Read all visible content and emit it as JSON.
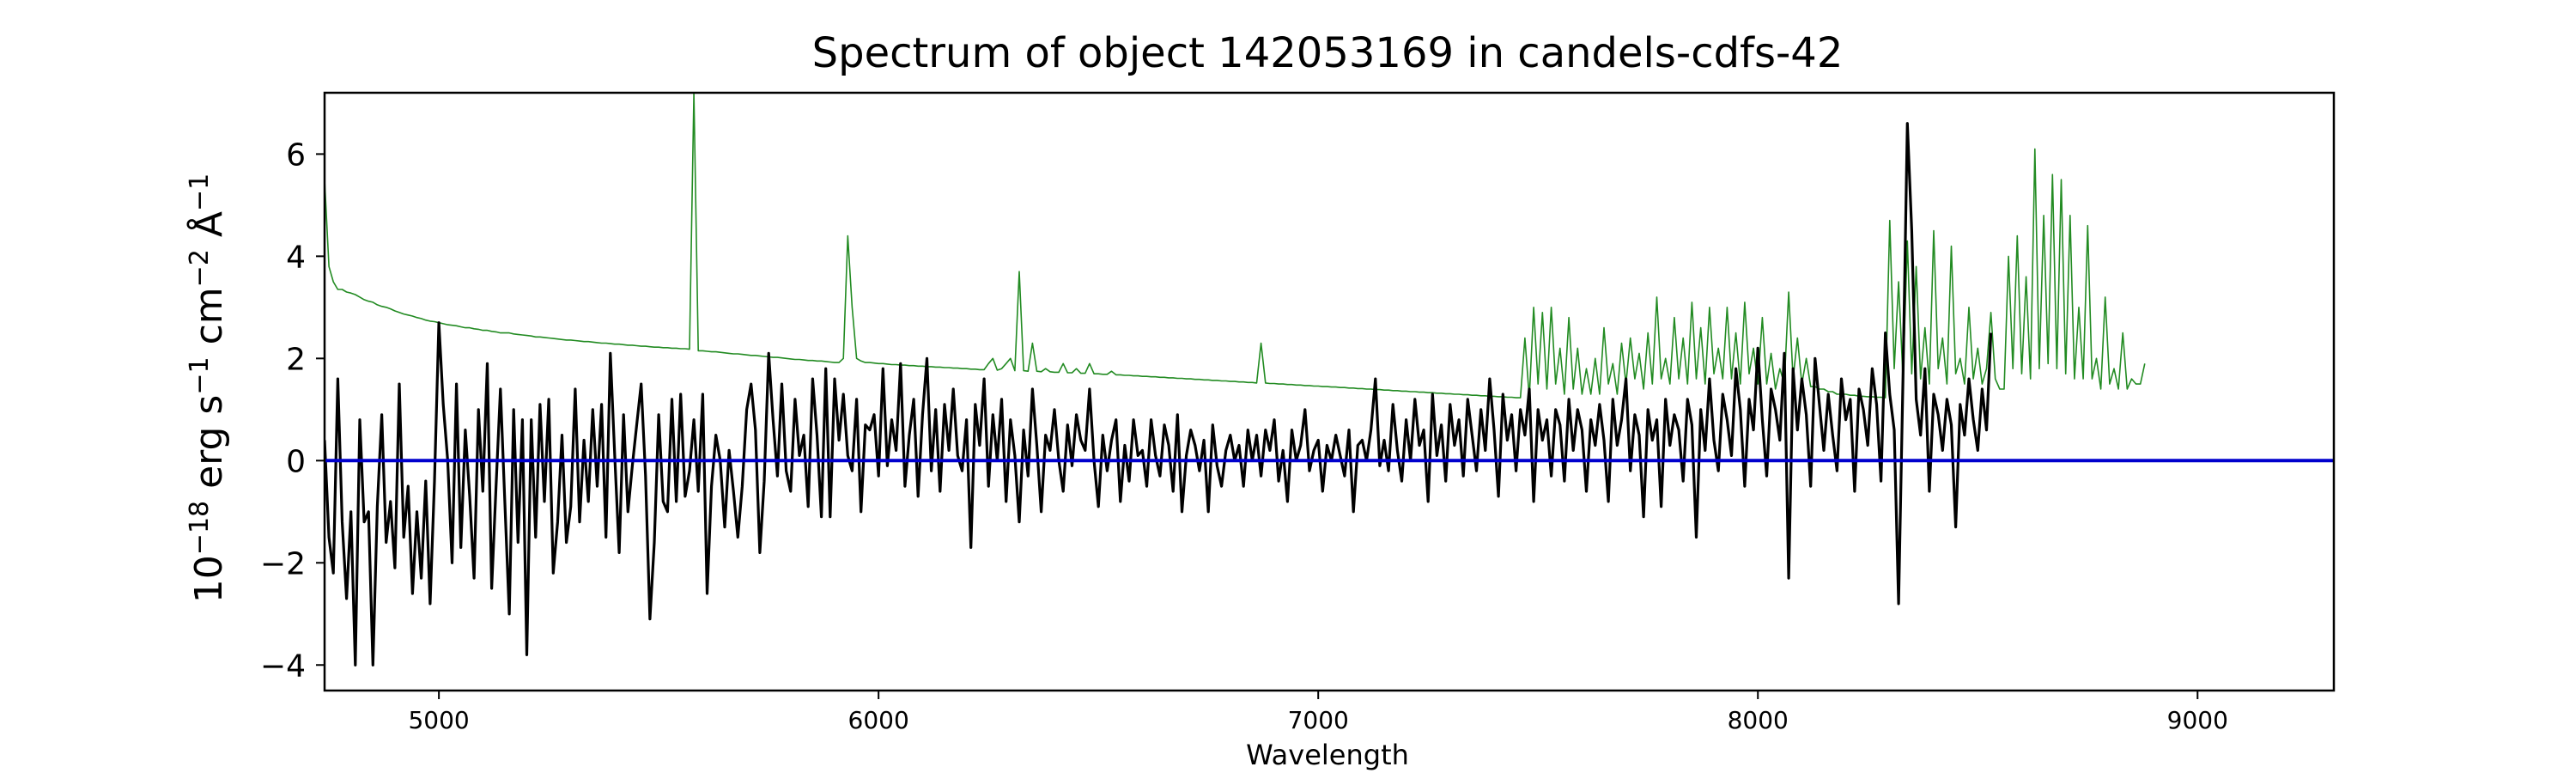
{
  "chart_data": {
    "type": "line",
    "title": "Spectrum of object 142053169 in candels-cdfs-42",
    "xlabel": "Wavelength",
    "ylabel_base": "10",
    "ylabel_exp": "−18",
    "ylabel_rest": " erg s",
    "ylabel_exp2": "−1",
    "ylabel_rest2": " cm",
    "ylabel_exp3": "−2",
    "ylabel_rest3": " Å",
    "ylabel_exp4": "−1",
    "xlim": [
      4740,
      9310
    ],
    "ylim": [
      -4.5,
      7.2
    ],
    "x_ticks": [
      5000,
      6000,
      7000,
      8000,
      9000
    ],
    "x_tick_labels": [
      "5000",
      "6000",
      "7000",
      "8000",
      "9000"
    ],
    "y_ticks": [
      -4,
      -2,
      0,
      2,
      4,
      6
    ],
    "y_tick_labels": [
      "−4",
      "−2",
      "0",
      "2",
      "4",
      "6"
    ],
    "grid": false,
    "colors": {
      "spectrum": "#000000",
      "noise": "#228B22",
      "continuum": "#0000CD"
    },
    "series": [
      {
        "role": "spectrum",
        "wl_start": 4740,
        "wl_step": 10,
        "values": [
          0.4,
          -1.5,
          -2.2,
          1.6,
          -1.2,
          -2.7,
          -1.0,
          -4.0,
          0.8,
          -1.2,
          -1.0,
          -4.0,
          -0.9,
          0.9,
          -1.6,
          -0.8,
          -2.1,
          1.5,
          -1.5,
          -0.5,
          -2.6,
          -1.0,
          -2.3,
          -0.4,
          -2.8,
          -0.4,
          2.7,
          1.1,
          0.0,
          -2.0,
          1.5,
          -1.7,
          0.6,
          -0.7,
          -2.3,
          1.0,
          -0.6,
          1.9,
          -2.5,
          -0.5,
          1.4,
          -0.8,
          -3.0,
          1.0,
          -1.6,
          0.8,
          -3.8,
          0.8,
          -1.5,
          1.1,
          -0.8,
          1.2,
          -2.2,
          -1.2,
          0.5,
          -1.6,
          -0.9,
          1.4,
          -1.2,
          0.4,
          -0.8,
          1.0,
          -0.5,
          1.1,
          -1.5,
          2.1,
          0.1,
          -1.8,
          0.9,
          -1.0,
          -0.1,
          0.7,
          1.5,
          -0.3,
          -3.1,
          -1.6,
          0.9,
          -0.8,
          -1.0,
          1.2,
          -0.8,
          1.3,
          -0.7,
          -0.2,
          0.8,
          -0.6,
          1.3,
          -2.6,
          -0.5,
          0.5,
          0.0,
          -1.3,
          0.2,
          -0.6,
          -1.5,
          -0.5,
          1.0,
          1.5,
          0.6,
          -1.8,
          -0.4,
          2.1,
          0.8,
          -0.3,
          1.5,
          -0.2,
          -0.6,
          1.2,
          0.1,
          0.5,
          -0.9,
          1.6,
          0.5,
          -1.1,
          1.8,
          -1.1,
          1.6,
          0.4,
          1.3,
          0.1,
          -0.2,
          1.2,
          -1.0,
          0.7,
          0.6,
          0.9,
          -0.3,
          1.8,
          -0.1,
          0.8,
          0.2,
          1.9,
          -0.5,
          0.5,
          1.2,
          -0.7,
          0.9,
          2.0,
          -0.2,
          1.0,
          -0.6,
          1.1,
          0.2,
          1.4,
          0.1,
          -0.2,
          0.8,
          -1.7,
          1.1,
          0.3,
          1.6,
          -0.5,
          0.9,
          0.0,
          1.2,
          -0.8,
          0.8,
          0.1,
          -1.2,
          0.6,
          -0.3,
          1.4,
          0.3,
          -1.0,
          0.5,
          0.2,
          1.0,
          0.0,
          -0.6,
          0.7,
          -0.1,
          0.9,
          0.4,
          0.2,
          1.4,
          0.0,
          -0.9,
          0.5,
          -0.2,
          0.4,
          0.8,
          -0.8,
          0.3,
          -0.4,
          0.8,
          0.1,
          0.2,
          -0.5,
          0.8,
          0.1,
          -0.3,
          0.7,
          0.3,
          -0.6,
          0.9,
          -1.0,
          0.1,
          0.6,
          0.3,
          -0.2,
          0.4,
          -1.0,
          0.7,
          -0.1,
          -0.5,
          0.2,
          0.5,
          0.0,
          0.3,
          -0.5,
          0.6,
          0.0,
          0.5,
          -0.3,
          0.6,
          0.2,
          0.8,
          -0.4,
          0.2,
          -0.8,
          0.6,
          0.0,
          0.3,
          1.0,
          -0.2,
          0.2,
          0.4,
          -0.6,
          0.3,
          0.0,
          0.5,
          0.1,
          -0.3,
          0.6,
          -1.0,
          0.3,
          0.4,
          0.0,
          0.6,
          1.6,
          -0.1,
          0.4,
          -0.2,
          1.1,
          0.2,
          -0.4,
          0.8,
          0.0,
          1.2,
          0.3,
          0.6,
          -0.8,
          1.3,
          0.1,
          0.7,
          -0.4,
          1.1,
          0.3,
          0.8,
          -0.3,
          1.2,
          0.5,
          -0.2,
          1.0,
          0.2,
          1.6,
          0.6,
          -0.7,
          1.3,
          0.4,
          0.9,
          -0.2,
          1.0,
          0.5,
          1.4,
          -0.8,
          1.0,
          0.4,
          0.8,
          -0.3,
          1.0,
          0.7,
          -0.4,
          1.2,
          0.2,
          1.0,
          0.6,
          -0.6,
          0.8,
          0.3,
          1.1,
          0.4,
          -0.8,
          1.2,
          0.3,
          0.8,
          1.6,
          -0.2,
          0.9,
          0.5,
          -1.1,
          1.0,
          0.4,
          0.8,
          -0.9,
          1.2,
          0.3,
          0.9,
          0.6,
          -0.4,
          1.2,
          0.7,
          -1.5,
          1.0,
          0.2,
          1.6,
          0.4,
          -0.2,
          1.3,
          0.8,
          0.1,
          1.8,
          1.0,
          -0.5,
          1.2,
          0.6,
          2.2,
          0.8,
          -0.3,
          1.4,
          1.0,
          0.4,
          2.1,
          -2.3,
          1.8,
          0.6,
          1.6,
          0.9,
          -0.5,
          2.0,
          1.1,
          0.2,
          1.3,
          0.5,
          -0.2,
          1.6,
          0.8,
          1.2,
          -0.6,
          1.4,
          1.0,
          0.3,
          1.8,
          1.1,
          -0.4,
          2.5,
          1.3,
          0.6,
          -2.8,
          1.6,
          6.6,
          4.5,
          1.2,
          0.5,
          1.8,
          -0.6,
          1.3,
          0.9,
          0.2,
          1.2,
          0.7,
          -1.3,
          1.1,
          0.5,
          1.6,
          0.8,
          0.2,
          1.4,
          0.6,
          2.5
        ]
      },
      {
        "role": "noise",
        "wl_start": 4740,
        "wl_step": 10,
        "values": [
          5.5,
          3.8,
          3.5,
          3.35,
          3.35,
          3.3,
          3.28,
          3.25,
          3.2,
          3.15,
          3.12,
          3.1,
          3.05,
          3.02,
          3.0,
          2.97,
          2.93,
          2.9,
          2.87,
          2.85,
          2.83,
          2.8,
          2.78,
          2.75,
          2.73,
          2.72,
          2.7,
          2.68,
          2.66,
          2.65,
          2.64,
          2.62,
          2.6,
          2.6,
          2.58,
          2.57,
          2.55,
          2.55,
          2.53,
          2.52,
          2.5,
          2.5,
          2.5,
          2.48,
          2.47,
          2.46,
          2.45,
          2.44,
          2.42,
          2.42,
          2.41,
          2.4,
          2.39,
          2.38,
          2.37,
          2.36,
          2.36,
          2.35,
          2.34,
          2.33,
          2.33,
          2.32,
          2.31,
          2.3,
          2.3,
          2.29,
          2.28,
          2.28,
          2.27,
          2.26,
          2.26,
          2.25,
          2.24,
          2.24,
          2.23,
          2.22,
          2.22,
          2.21,
          2.21,
          2.2,
          2.2,
          2.19,
          2.19,
          2.18,
          7.2,
          2.15,
          2.15,
          2.14,
          2.13,
          2.13,
          2.12,
          2.11,
          2.1,
          2.09,
          2.09,
          2.08,
          2.07,
          2.06,
          2.06,
          2.05,
          2.04,
          2.03,
          2.02,
          2.02,
          2.01,
          2.0,
          1.99,
          1.98,
          1.98,
          1.97,
          1.96,
          1.96,
          1.95,
          1.95,
          1.94,
          1.93,
          1.92,
          1.92,
          2.0,
          4.4,
          3.0,
          2.0,
          1.95,
          1.92,
          1.92,
          1.91,
          1.9,
          1.9,
          1.89,
          1.88,
          1.88,
          1.87,
          1.87,
          1.86,
          1.86,
          1.85,
          1.85,
          1.84,
          1.84,
          1.83,
          1.83,
          1.82,
          1.82,
          1.81,
          1.81,
          1.8,
          1.8,
          1.79,
          1.79,
          1.78,
          1.78,
          1.9,
          2.0,
          1.77,
          1.8,
          1.9,
          2.0,
          1.76,
          3.7,
          1.76,
          1.75,
          2.3,
          1.75,
          1.74,
          1.8,
          1.74,
          1.73,
          1.73,
          1.9,
          1.72,
          1.72,
          1.8,
          1.71,
          1.71,
          1.9,
          1.7,
          1.7,
          1.69,
          1.69,
          1.75,
          1.68,
          1.68,
          1.67,
          1.67,
          1.66,
          1.66,
          1.65,
          1.65,
          1.64,
          1.64,
          1.63,
          1.63,
          1.62,
          1.62,
          1.61,
          1.61,
          1.6,
          1.6,
          1.59,
          1.59,
          1.58,
          1.58,
          1.57,
          1.57,
          1.56,
          1.56,
          1.55,
          1.55,
          1.54,
          1.54,
          1.53,
          1.53,
          1.52,
          2.3,
          1.52,
          1.51,
          1.51,
          1.5,
          1.5,
          1.49,
          1.49,
          1.48,
          1.48,
          1.47,
          1.47,
          1.46,
          1.46,
          1.45,
          1.45,
          1.44,
          1.44,
          1.43,
          1.43,
          1.42,
          1.42,
          1.41,
          1.41,
          1.4,
          1.4,
          1.39,
          1.39,
          1.38,
          1.38,
          1.37,
          1.37,
          1.36,
          1.36,
          1.35,
          1.35,
          1.34,
          1.34,
          1.33,
          1.33,
          1.32,
          1.32,
          1.31,
          1.31,
          1.3,
          1.3,
          1.29,
          1.29,
          1.28,
          1.28,
          1.27,
          1.27,
          1.26,
          1.26,
          1.25,
          1.25,
          1.24,
          1.24,
          1.23,
          1.23,
          2.4,
          1.23,
          3.0,
          1.5,
          2.9,
          1.4,
          3.0,
          1.5,
          2.2,
          1.3,
          2.8,
          1.4,
          2.2,
          1.3,
          1.8,
          1.3,
          2.0,
          1.3,
          2.6,
          1.5,
          1.9,
          1.3,
          2.3,
          1.5,
          2.4,
          1.6,
          2.1,
          1.4,
          2.5,
          1.5,
          3.2,
          1.6,
          2.0,
          1.5,
          2.8,
          1.6,
          2.4,
          1.5,
          3.1,
          1.6,
          2.6,
          1.5,
          3.0,
          1.7,
          2.2,
          1.6,
          3.0,
          1.6,
          2.5,
          1.5,
          3.1,
          1.7,
          2.2,
          1.5,
          2.8,
          1.5,
          2.1,
          1.4,
          1.8,
          1.5,
          3.3,
          1.6,
          2.4,
          1.5,
          2.0,
          1.45,
          1.45,
          1.4,
          1.4,
          1.35,
          1.35,
          1.3,
          1.3,
          1.3,
          1.28,
          1.28,
          1.26,
          1.26,
          1.25,
          1.25,
          1.24,
          1.24,
          1.23,
          4.7,
          1.8,
          3.5,
          1.6,
          4.3,
          1.7,
          3.8,
          1.6,
          2.6,
          1.5,
          4.5,
          1.8,
          2.4,
          1.5,
          4.2,
          1.7,
          2.0,
          1.5,
          3.0,
          1.6,
          2.2,
          1.5,
          1.8,
          2.9,
          1.6,
          1.4,
          1.4,
          4.0,
          1.8,
          4.4,
          1.7,
          3.6,
          1.6,
          6.1,
          1.8,
          4.8,
          1.9,
          5.6,
          1.8,
          5.5,
          1.7,
          4.8,
          1.6,
          3.0,
          1.6,
          4.6,
          1.6,
          2.0,
          1.4,
          3.2,
          1.5,
          1.8,
          1.4,
          2.5,
          1.4,
          1.6,
          1.5,
          1.5,
          1.9
        ]
      }
    ],
    "continuum_level": 0
  }
}
